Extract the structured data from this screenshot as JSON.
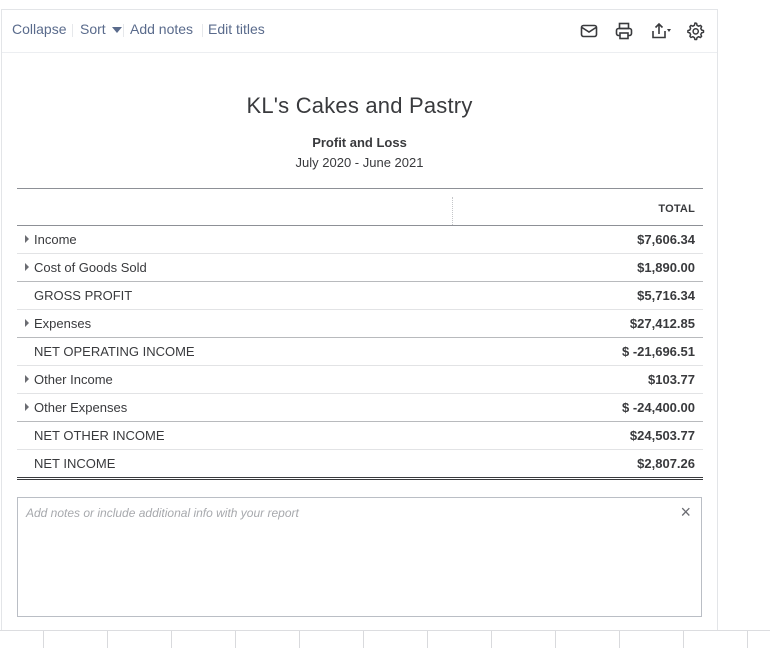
{
  "toolbar": {
    "collapse_label": "Collapse",
    "sort_label": "Sort",
    "add_notes_label": "Add notes",
    "edit_titles_label": "Edit titles",
    "icons": [
      "email-icon",
      "print-icon",
      "export-icon",
      "gear-icon"
    ]
  },
  "report": {
    "company": "KL's Cakes and Pastry",
    "title": "Profit and Loss",
    "date_range": "July 2020 - June 2021",
    "column_header": "TOTAL"
  },
  "rows": [
    {
      "label": "Income",
      "value": "$7,606.34",
      "expandable": true
    },
    {
      "label": "Cost of Goods Sold",
      "value": "$1,890.00",
      "expandable": true
    },
    {
      "label": "GROSS PROFIT",
      "value": "$5,716.34",
      "expandable": false
    },
    {
      "label": "Expenses",
      "value": "$27,412.85",
      "expandable": true
    },
    {
      "label": "NET OPERATING INCOME",
      "value": "$ -21,696.51",
      "expandable": false
    },
    {
      "label": "Other Income",
      "value": "$103.77",
      "expandable": true
    },
    {
      "label": "Other Expenses",
      "value": "$ -24,400.00",
      "expandable": true
    },
    {
      "label": "NET OTHER INCOME",
      "value": "$24,503.77",
      "expandable": false
    },
    {
      "label": "NET INCOME",
      "value": "$2,807.26",
      "expandable": false
    }
  ],
  "notes": {
    "placeholder": "Add notes or include additional info with your report",
    "close_symbol": "×"
  },
  "colors": {
    "link": "#5a6b8c",
    "text": "#393a3d",
    "rule": "#8d9096"
  }
}
